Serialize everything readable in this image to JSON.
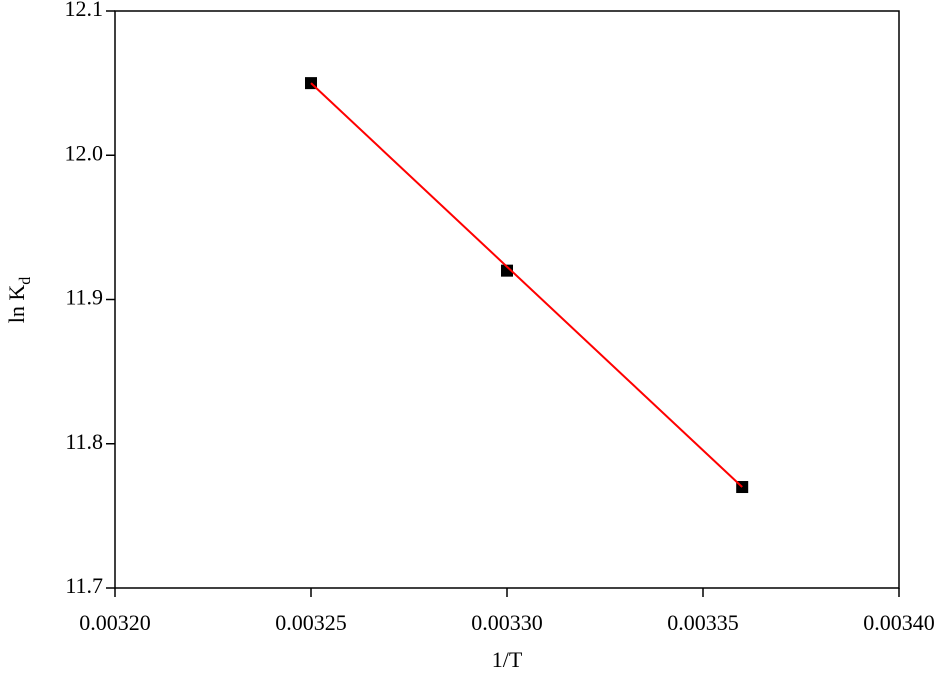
{
  "chart_data": {
    "type": "scatter",
    "xlabel": "1/T",
    "ylabel": "ln K",
    "ylabel_sub": "d",
    "x": [
      0.00325,
      0.0033,
      0.00336
    ],
    "series": [
      {
        "color": "#000000",
        "values": [
          12.05,
          11.92,
          11.77
        ]
      },
      {
        "color": "#ff0000",
        "x": [
          0.00325,
          0.00336
        ],
        "values": [
          12.05,
          11.77
        ]
      }
    ],
    "xlim": [
      0.0032,
      0.0034
    ],
    "xticks": [
      {
        "value": 0.0032,
        "label": "0.00320"
      },
      {
        "value": 0.00325,
        "label": "0.00325"
      },
      {
        "value": 0.0033,
        "label": "0.00330"
      },
      {
        "value": 0.00335,
        "label": "0.00335"
      },
      {
        "value": 0.0034,
        "label": "0.00340"
      }
    ],
    "ylim": [
      11.7,
      12.1
    ],
    "yticks": [
      11.7,
      11.8,
      11.9,
      {
        "value": 12.0,
        "label": "12.0"
      },
      12.1
    ],
    "grid": false
  }
}
